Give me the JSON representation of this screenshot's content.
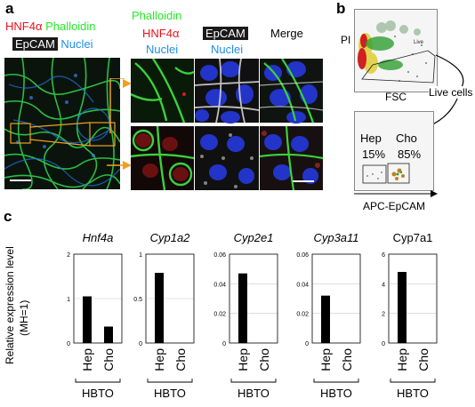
{
  "panel_a": {
    "label": "a",
    "left_labels": {
      "hnf4a": "HNF4α",
      "phalloidin": "Phalloidin",
      "epcam": "EpCAM",
      "nuclei": "Nuclei"
    },
    "col_phalloidin": {
      "line1": "Phalloidin",
      "hnf4a": "HNF4α"
    },
    "col_epcam": {
      "epcam": "EpCAM",
      "nuclei": "Nuclei"
    },
    "col_merge": "Merge",
    "col_phalloidin_nuclei": "Nuclei"
  },
  "panel_b": {
    "label": "b",
    "top_plot": {
      "y_label": "PI",
      "x_label": "FSC",
      "gate_label": "Live"
    },
    "arrow_label": "Live cells",
    "bottom_plot": {
      "hep_label": "Hep",
      "hep_pct": "15%",
      "cho_label": "Cho",
      "cho_pct": "85%",
      "x_label": "APC-EpCAM"
    }
  },
  "panel_c": {
    "label": "c",
    "y_axis_label": "Relative expression level",
    "y_axis_sub": "(MH=1)",
    "chart_data": [
      {
        "type": "bar",
        "title": "Hnf4a",
        "categories": [
          "Hep",
          "Cho"
        ],
        "values": [
          1.05,
          0.37
        ],
        "ylim": [
          0,
          2
        ],
        "yticks": [
          "0",
          "1",
          "2"
        ],
        "group_label": "HBTO"
      },
      {
        "type": "bar",
        "title": "Cyp1a2",
        "categories": [
          "Hep",
          "Cho"
        ],
        "values": [
          0.79,
          0
        ],
        "ylim": [
          0,
          1
        ],
        "yticks": [
          "0",
          "0.5",
          "1"
        ],
        "group_label": "HBTO"
      },
      {
        "type": "bar",
        "title": "Cyp2e1",
        "categories": [
          "Hep",
          "Cho"
        ],
        "values": [
          0.047,
          0
        ],
        "ylim": [
          0,
          0.06
        ],
        "yticks": [
          "0",
          "0.02",
          "0.04",
          "0.06"
        ],
        "group_label": "HBTO"
      },
      {
        "type": "bar",
        "title": "Cyp3a11",
        "categories": [
          "Hep",
          "Cho"
        ],
        "values": [
          0.032,
          0
        ],
        "ylim": [
          0,
          0.06
        ],
        "yticks": [
          "0",
          "0.02",
          "0.04",
          "0.06"
        ],
        "group_label": "HBTO"
      },
      {
        "type": "bar",
        "title": "Cyp7a1",
        "categories": [
          "Hep",
          "Cho"
        ],
        "values": [
          4.8,
          0
        ],
        "ylim": [
          0,
          6
        ],
        "yticks": [
          "0",
          "2",
          "4",
          "6"
        ],
        "group_label": "HBTO"
      }
    ]
  }
}
